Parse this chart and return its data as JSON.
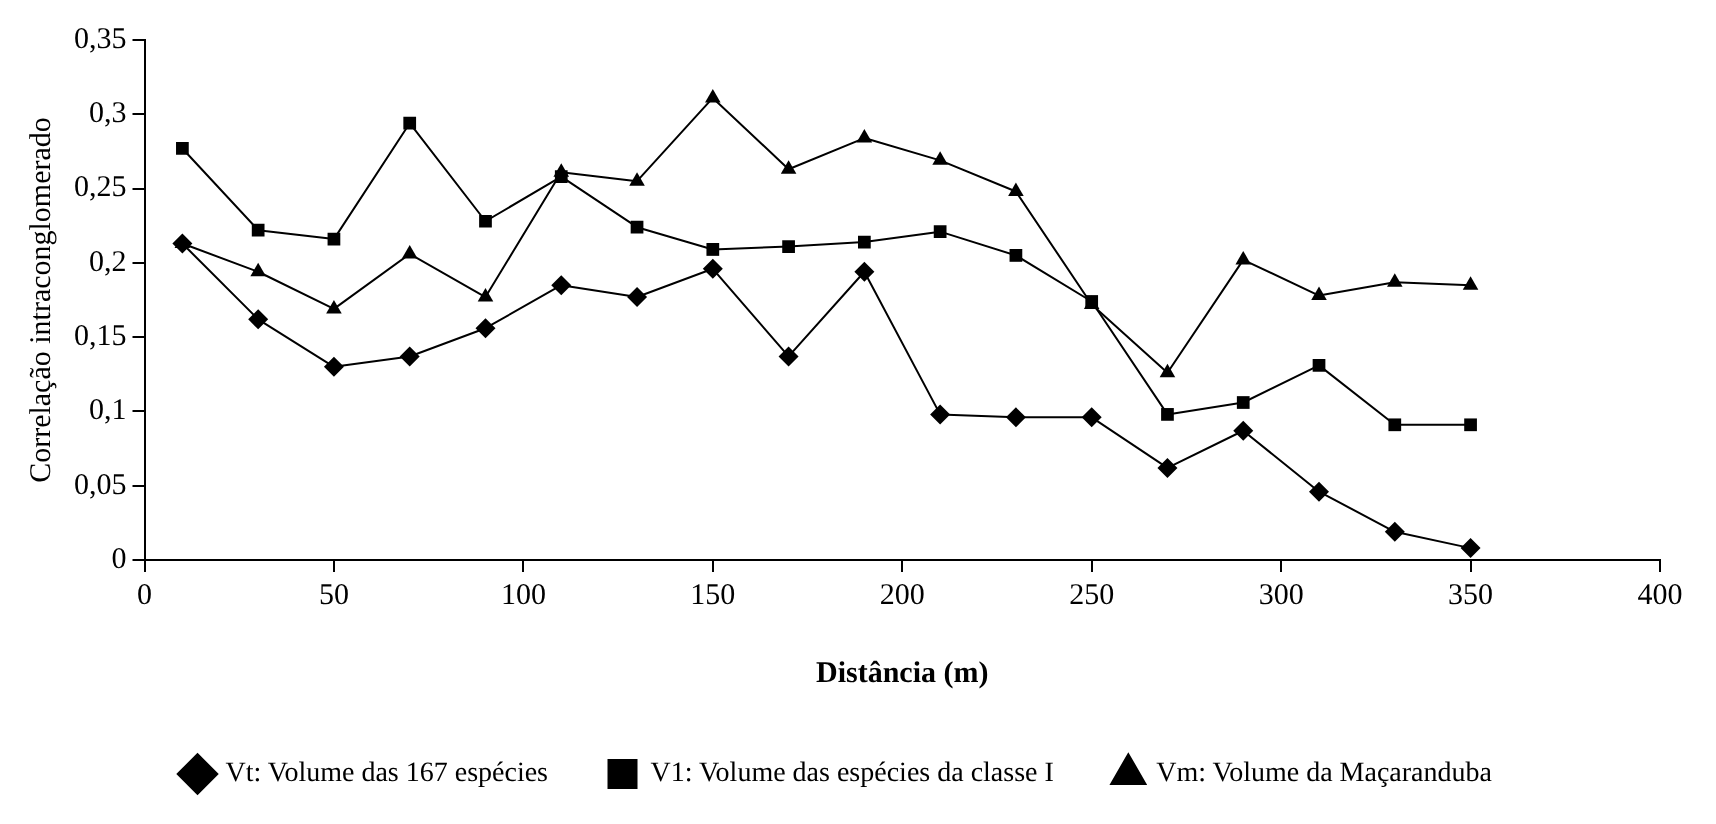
{
  "chart_data": {
    "type": "line",
    "xlabel": "Distância (m)",
    "ylabel": "Correlação intraconglomerado",
    "x": [
      10,
      30,
      50,
      70,
      90,
      110,
      130,
      150,
      170,
      190,
      210,
      230,
      250,
      270,
      290,
      310,
      330,
      350
    ],
    "xlim": [
      0,
      400
    ],
    "xticks": [
      0,
      50,
      100,
      150,
      200,
      250,
      300,
      350,
      400
    ],
    "ylim": [
      0,
      0.35
    ],
    "yticks": [
      {
        "value": 0,
        "label": "0"
      },
      {
        "value": 0.05,
        "label": "0,05"
      },
      {
        "value": 0.1,
        "label": "0,1"
      },
      {
        "value": 0.15,
        "label": "0,15"
      },
      {
        "value": 0.2,
        "label": "0,2"
      },
      {
        "value": 0.25,
        "label": "0,25"
      },
      {
        "value": 0.3,
        "label": "0,3"
      },
      {
        "value": 0.35,
        "label": "0,35"
      }
    ],
    "grid": false,
    "legend": "bottom",
    "line_style": "solid",
    "series": [
      {
        "name": "Vt: Volume das 167 espécies",
        "color": "#000000",
        "marker": "diamond",
        "values": [
          0.213,
          0.162,
          0.13,
          0.137,
          0.156,
          0.185,
          0.177,
          0.196,
          0.137,
          0.194,
          0.098,
          0.096,
          0.096,
          0.062,
          0.087,
          0.046,
          0.019,
          0.008
        ]
      },
      {
        "name": "V1: Volume das espécies da classe I",
        "color": "#000000",
        "marker": "square",
        "values": [
          0.277,
          0.222,
          0.216,
          0.294,
          0.228,
          0.258,
          0.224,
          0.209,
          0.211,
          0.214,
          0.221,
          0.205,
          0.174,
          0.098,
          0.106,
          0.131,
          0.091,
          0.091
        ]
      },
      {
        "name": "Vm: Volume da Maçaranduba",
        "color": "#000000",
        "marker": "triangle",
        "values": [
          0.213,
          0.194,
          0.169,
          0.206,
          0.177,
          0.261,
          0.255,
          0.311,
          0.263,
          0.284,
          0.269,
          0.248,
          0.172,
          0.126,
          0.202,
          0.178,
          0.187,
          0.185
        ]
      }
    ]
  }
}
